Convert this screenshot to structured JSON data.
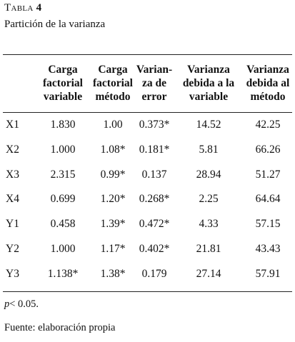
{
  "title": {
    "label": "Tabla",
    "number": "4"
  },
  "subtitle": "Partición de la varianza",
  "columns": [
    [
      "Carga",
      "factorial",
      "variable"
    ],
    [
      "Carga",
      "factorial",
      "método"
    ],
    [
      "Varian-",
      "za de",
      "error"
    ],
    [
      "Varianza",
      "debida a la",
      "variable"
    ],
    [
      "Varianza",
      "debida al",
      "método"
    ]
  ],
  "rows": [
    {
      "label": "X1",
      "values": [
        "1.830",
        "1.00",
        "0.373*",
        "14.52",
        "42.25"
      ]
    },
    {
      "label": "X2",
      "values": [
        "1.000",
        "1.08*",
        "0.181*",
        "5.81",
        "66.26"
      ]
    },
    {
      "label": "X3",
      "values": [
        "2.315",
        "0.99*",
        "0.137",
        "28.94",
        "51.27"
      ]
    },
    {
      "label": "X4",
      "values": [
        "0.699",
        "1.20*",
        "0.268*",
        "2.25",
        "64.64"
      ]
    },
    {
      "label": "Y1",
      "values": [
        "0.458",
        "1.39*",
        "0.472*",
        "4.33",
        "57.15"
      ]
    },
    {
      "label": "Y2",
      "values": [
        "1.000",
        "1.17*",
        "0.402*",
        "21.81",
        "43.43"
      ]
    },
    {
      "label": "Y3",
      "values": [
        "1.138*",
        "1.38*",
        "0.179",
        "27.14",
        "57.91"
      ]
    }
  ],
  "note": {
    "p": "p",
    "rest": "< 0.05."
  },
  "source": "Fuente: elaboración propia"
}
